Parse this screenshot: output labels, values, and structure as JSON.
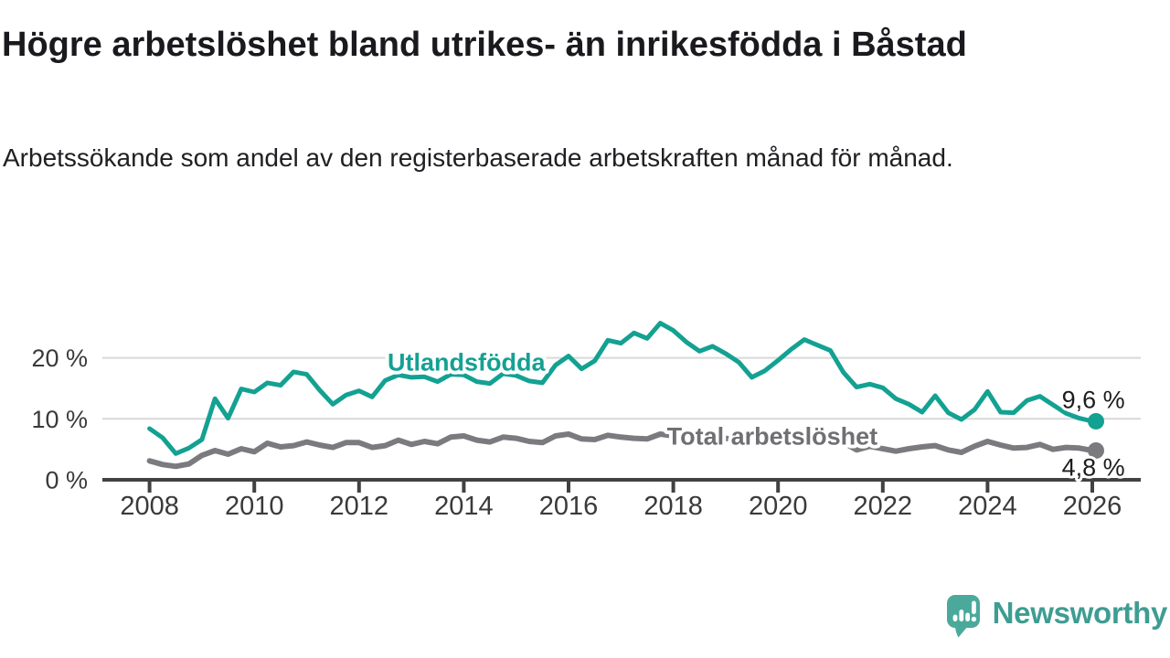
{
  "chart_data": {
    "type": "line",
    "title": "Högre arbetslöshet bland utrikes- än inrikesfödda i Båstad",
    "subtitle": "Arbetssökande som andel av den registerbaserade arbetskraften månad för månad.",
    "grid": "horizontal",
    "legend_position": "inline-labels-on-lines",
    "xlim": [
      2007.1,
      2027.0
    ],
    "ylim": [
      0,
      27
    ],
    "x_ticks": [
      2008,
      2010,
      2012,
      2014,
      2016,
      2018,
      2020,
      2022,
      2024,
      2026
    ],
    "y_ticks": [
      {
        "value": 0,
        "label": "0 %"
      },
      {
        "value": 10,
        "label": "10 %"
      },
      {
        "value": 20,
        "label": "20 %"
      }
    ],
    "series": [
      {
        "name": "Total arbetslöshet",
        "color": "#7b7b7f",
        "line_width": 6,
        "end_label": "4,8 %",
        "x": [
          2008.0,
          2008.25,
          2008.5,
          2008.75,
          2009.0,
          2009.25,
          2009.5,
          2009.75,
          2010.0,
          2010.25,
          2010.5,
          2010.75,
          2011.0,
          2011.25,
          2011.5,
          2011.75,
          2012.0,
          2012.25,
          2012.5,
          2012.75,
          2013.0,
          2013.25,
          2013.5,
          2013.75,
          2014.0,
          2014.25,
          2014.5,
          2014.75,
          2015.0,
          2015.25,
          2015.5,
          2015.75,
          2016.0,
          2016.25,
          2016.5,
          2016.75,
          2017.0,
          2017.25,
          2017.5,
          2017.75,
          2018.0,
          2018.25,
          2018.5,
          2018.75,
          2019.0,
          2019.25,
          2019.5,
          2019.75,
          2020.0,
          2020.25,
          2020.5,
          2020.75,
          2021.0,
          2021.25,
          2021.5,
          2021.75,
          2022.0,
          2022.25,
          2022.5,
          2022.75,
          2023.0,
          2023.25,
          2023.5,
          2023.75,
          2024.0,
          2024.25,
          2024.5,
          2024.75,
          2025.0,
          2025.25,
          2025.5,
          2025.75,
          2026.0
        ],
        "values": [
          3.1,
          2.5,
          2.2,
          2.6,
          4.0,
          4.8,
          4.2,
          5.1,
          4.6,
          6.0,
          5.4,
          5.6,
          6.2,
          5.7,
          5.3,
          6.1,
          6.1,
          5.3,
          5.6,
          6.5,
          5.8,
          6.3,
          5.9,
          7.0,
          7.2,
          6.5,
          6.2,
          7.0,
          6.8,
          6.3,
          6.1,
          7.2,
          7.5,
          6.7,
          6.6,
          7.3,
          7.0,
          6.8,
          6.7,
          7.5,
          7.2,
          6.8,
          6.6,
          7.0,
          6.8,
          6.5,
          6.3,
          6.6,
          7.1,
          7.4,
          7.2,
          7.0,
          6.7,
          6.1,
          4.9,
          5.5,
          5.1,
          4.7,
          5.1,
          5.4,
          5.6,
          4.9,
          4.5,
          5.5,
          6.3,
          5.7,
          5.2,
          5.3,
          5.8,
          5.0,
          5.3,
          5.2,
          4.8
        ]
      },
      {
        "name": "Utlandsfödda",
        "color": "#13a192",
        "line_width": 5,
        "end_label": "9,6 %",
        "x": [
          2008.0,
          2008.25,
          2008.5,
          2008.75,
          2009.0,
          2009.25,
          2009.5,
          2009.75,
          2010.0,
          2010.25,
          2010.5,
          2010.75,
          2011.0,
          2011.25,
          2011.5,
          2011.75,
          2012.0,
          2012.25,
          2012.5,
          2012.75,
          2013.0,
          2013.25,
          2013.5,
          2013.75,
          2014.0,
          2014.25,
          2014.5,
          2014.75,
          2015.0,
          2015.25,
          2015.5,
          2015.75,
          2016.0,
          2016.25,
          2016.5,
          2016.75,
          2017.0,
          2017.25,
          2017.5,
          2017.75,
          2018.0,
          2018.25,
          2018.5,
          2018.75,
          2019.0,
          2019.25,
          2019.5,
          2019.75,
          2020.0,
          2020.25,
          2020.5,
          2020.75,
          2021.0,
          2021.25,
          2021.5,
          2021.75,
          2022.0,
          2022.25,
          2022.5,
          2022.75,
          2023.0,
          2023.25,
          2023.5,
          2023.75,
          2024.0,
          2024.25,
          2024.5,
          2024.75,
          2025.0,
          2025.25,
          2025.5,
          2025.75,
          2026.0
        ],
        "values": [
          8.4,
          6.9,
          4.3,
          5.2,
          6.6,
          13.3,
          10.1,
          14.9,
          14.4,
          15.9,
          15.5,
          17.7,
          17.3,
          14.7,
          12.4,
          13.9,
          14.6,
          13.6,
          16.3,
          17.2,
          16.8,
          16.9,
          16.1,
          17.3,
          17.2,
          16.1,
          15.8,
          17.4,
          17.1,
          16.2,
          15.9,
          18.8,
          20.3,
          18.2,
          19.5,
          22.9,
          22.4,
          24.1,
          23.2,
          25.7,
          24.5,
          22.6,
          21.1,
          21.9,
          20.7,
          19.3,
          16.8,
          17.9,
          19.6,
          21.4,
          23.0,
          22.1,
          21.2,
          17.6,
          15.2,
          15.7,
          15.1,
          13.3,
          12.4,
          11.1,
          13.8,
          11.0,
          9.9,
          11.5,
          14.5,
          11.1,
          11.0,
          13.0,
          13.7,
          12.3,
          10.9,
          10.1,
          9.6
        ]
      }
    ],
    "series_labels": [
      {
        "text": "Utlandsfödda",
        "x": 2014.05,
        "y": 19.3,
        "color": "#13a192"
      },
      {
        "text": "Total arbetslöshet",
        "x": 2019.89,
        "y": 7.2,
        "color": "#6f6f74"
      }
    ],
    "annotations": [
      {
        "text": "9,6 %",
        "x": 2026.02,
        "y": 13.2,
        "color": "#1d1d1f"
      },
      {
        "text": "4,8 %",
        "x": 2026.02,
        "y": 2.1,
        "color": "#1d1d1f"
      }
    ],
    "axis_color": "#414141",
    "gridline_color": "#d9d9d9",
    "tick_label_color": "#3a3a3a"
  },
  "footer": {
    "brand": "Newsworthy",
    "logo_icon": "speech-bubble-bar-chart-exclamation",
    "brand_color": "#3e9d92",
    "logo_fill": "#4ba99c"
  }
}
